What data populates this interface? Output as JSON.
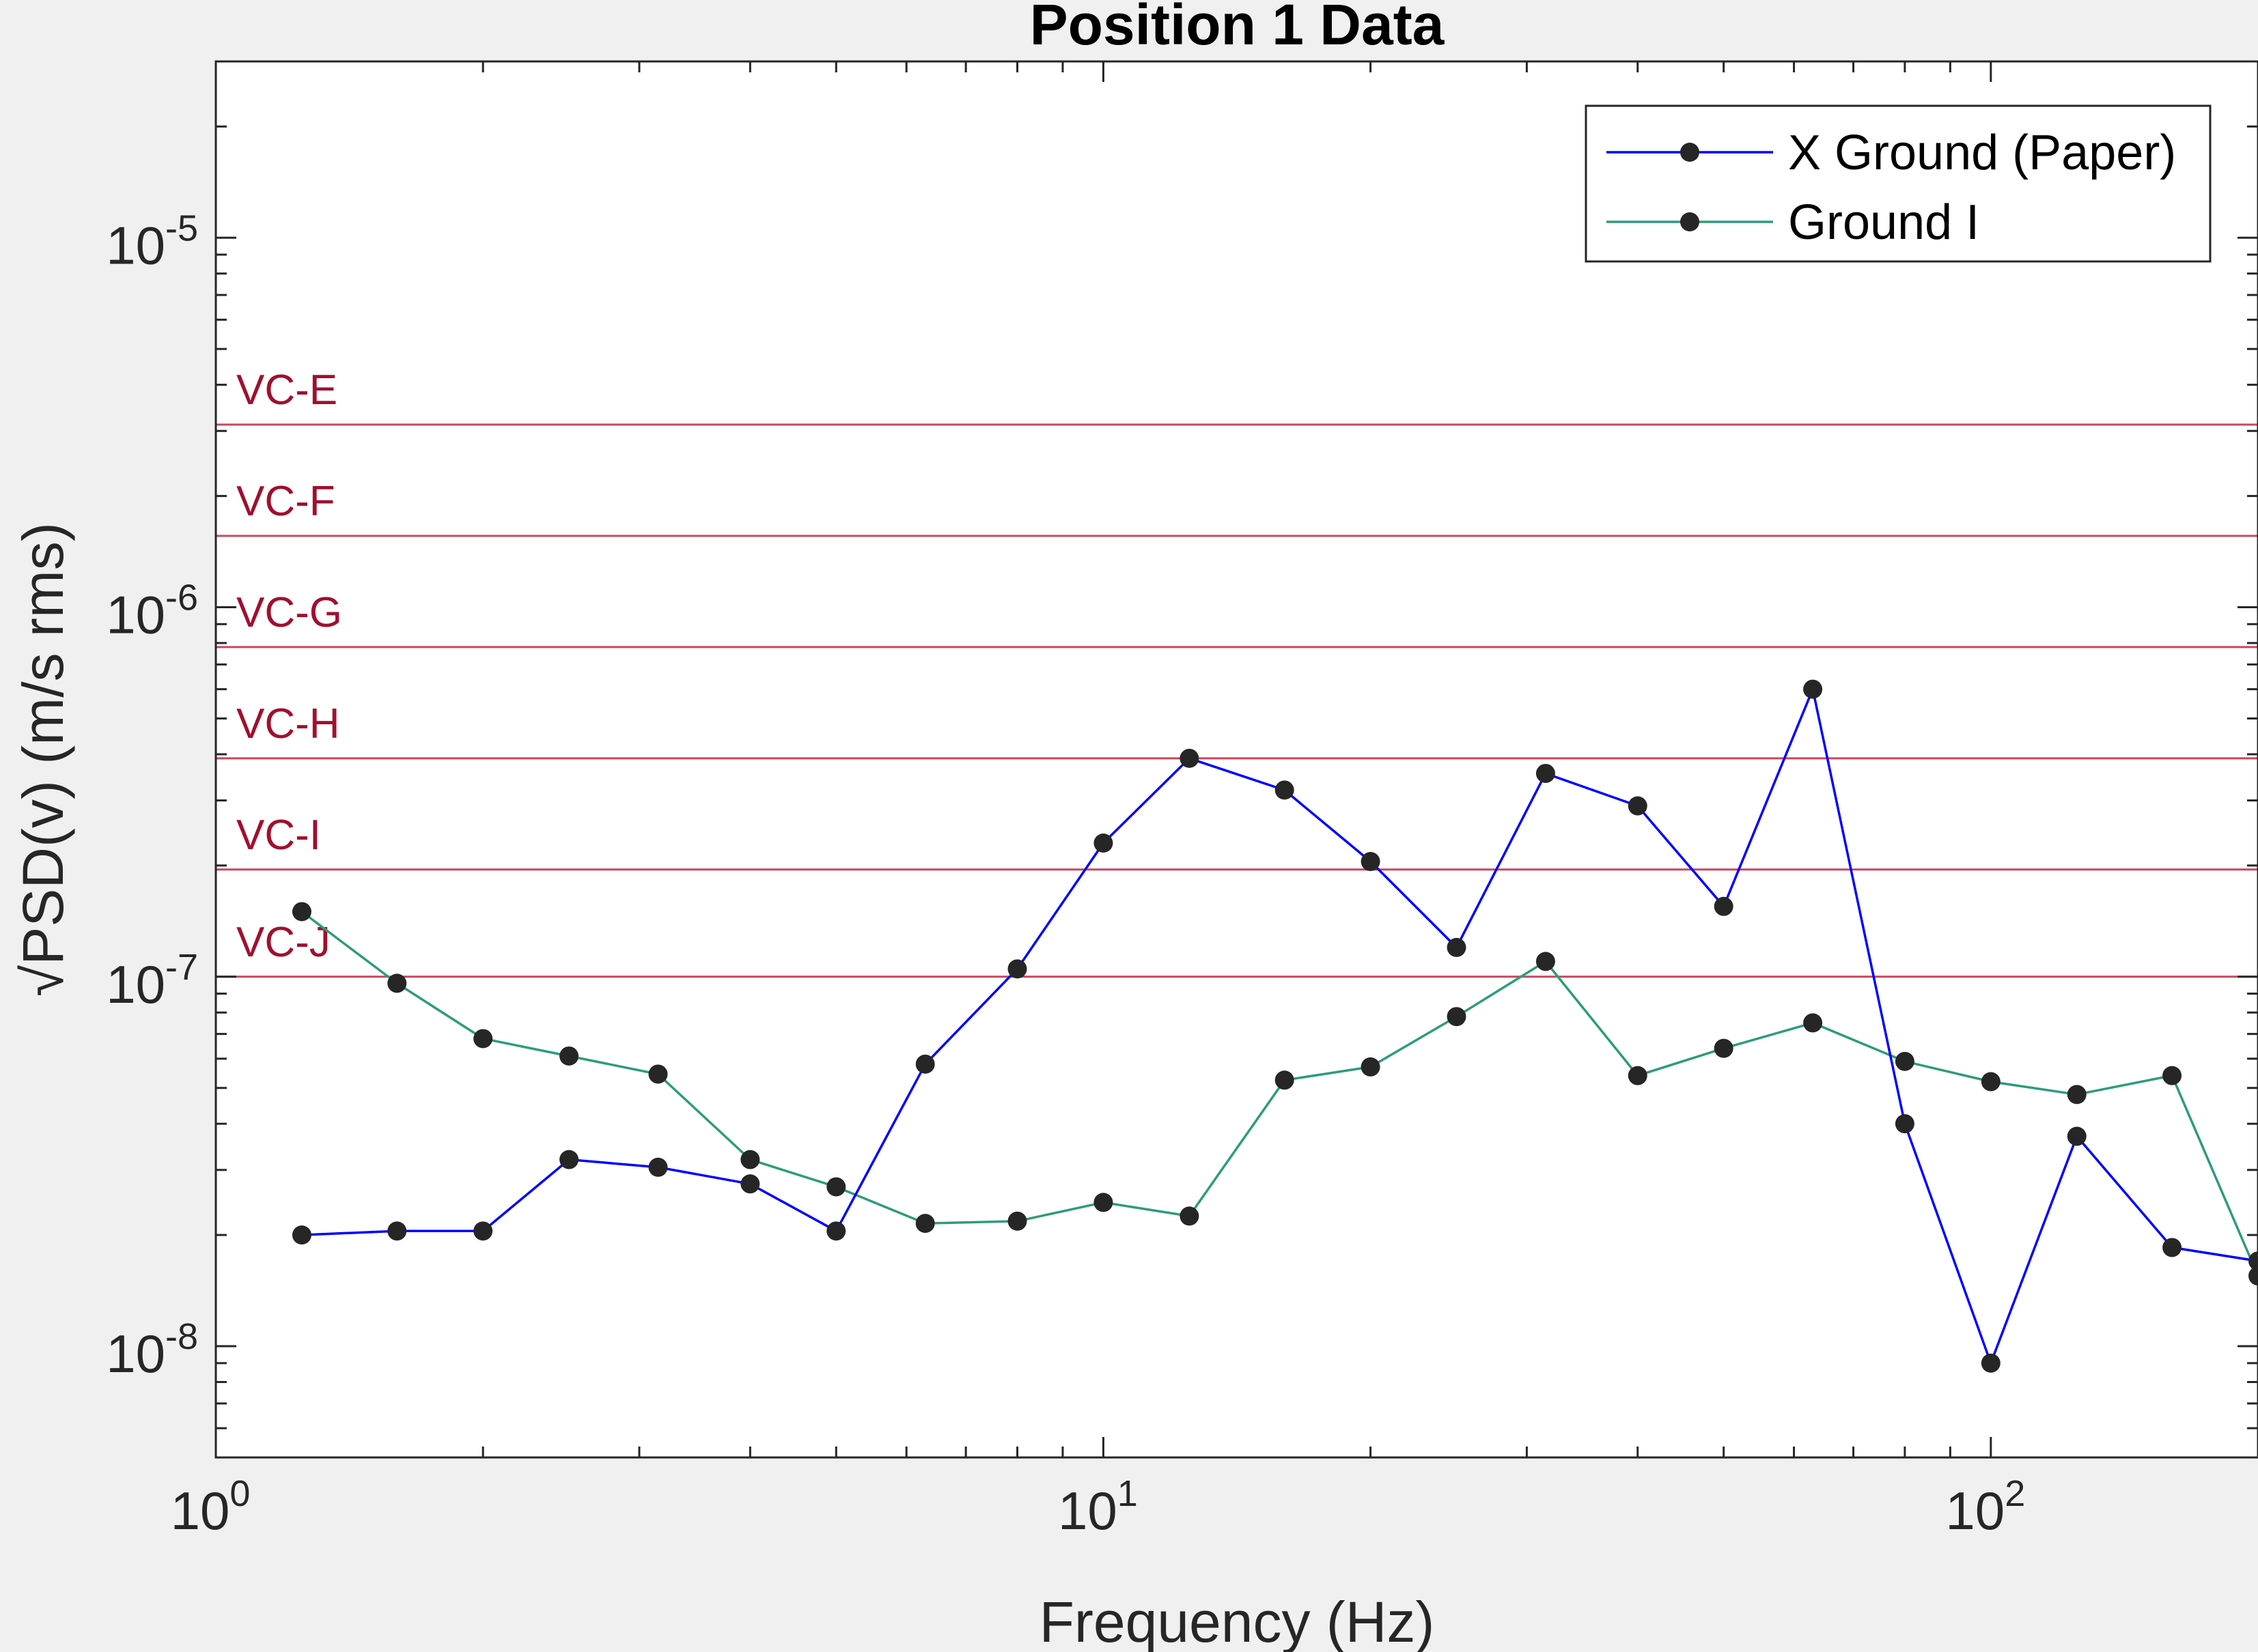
{
  "chart_data": {
    "type": "line",
    "title": "Position 1 Data",
    "xlabel": "Frequency (Hz)",
    "ylabel": "√PSD(v) (m/s rms)",
    "xscale": "log",
    "yscale": "log",
    "xlim": [
      1,
      200
    ],
    "ylim": [
      5e-09,
      3e-05
    ],
    "x_ticks": [
      {
        "value": 1,
        "base": "10",
        "exp": "0"
      },
      {
        "value": 10,
        "base": "10",
        "exp": "1"
      },
      {
        "value": 100,
        "base": "10",
        "exp": "2"
      }
    ],
    "y_ticks": [
      {
        "value": 1e-08,
        "base": "10",
        "exp": "-8"
      },
      {
        "value": 1e-07,
        "base": "10",
        "exp": "-7"
      },
      {
        "value": 1e-06,
        "base": "10",
        "exp": "-6"
      },
      {
        "value": 1e-05,
        "base": "10",
        "exp": "-5"
      }
    ],
    "grid": false,
    "legend_location": "top-right",
    "x": [
      1.25,
      1.6,
      2,
      2.5,
      3.15,
      4,
      5,
      6.3,
      8,
      10,
      12.5,
      16,
      20,
      25,
      31.5,
      40,
      50,
      63,
      80,
      100,
      125,
      160,
      200
    ],
    "series": [
      {
        "name": "X Ground (Paper)",
        "color": "#0000ff",
        "values": [
          2e-08,
          2.05e-08,
          2.05e-08,
          3.2e-08,
          3.05e-08,
          2.75e-08,
          2.05e-08,
          5.8e-08,
          1.05e-07,
          2.3e-07,
          3.9e-07,
          3.2e-07,
          2.05e-07,
          1.2e-07,
          3.55e-07,
          2.9e-07,
          1.55e-07,
          6e-07,
          4e-08,
          9e-09,
          3.7e-08,
          1.85e-08,
          1.7e-08
        ]
      },
      {
        "name": "Ground I",
        "color": "#2e9b7c",
        "values": [
          1.5e-07,
          9.6e-08,
          6.8e-08,
          6.1e-08,
          5.45e-08,
          3.2e-08,
          2.7e-08,
          2.15e-08,
          2.18e-08,
          2.45e-08,
          2.25e-08,
          5.25e-08,
          5.7e-08,
          7.8e-08,
          1.1e-07,
          5.4e-08,
          6.4e-08,
          7.5e-08,
          5.9e-08,
          5.2e-08,
          4.8e-08,
          5.4e-08,
          1.55e-08
        ]
      }
    ],
    "marker_color": "#262626",
    "reference_lines": [
      {
        "label": "VC-E",
        "value": 3.12e-06
      },
      {
        "label": "VC-F",
        "value": 1.56e-06
      },
      {
        "label": "VC-G",
        "value": 7.8e-07
      },
      {
        "label": "VC-H",
        "value": 3.9e-07
      },
      {
        "label": "VC-I",
        "value": 1.95e-07
      },
      {
        "label": "VC-J",
        "value": 1e-07
      }
    ],
    "reference_line_color": "#c8475e",
    "reference_label_color": "#a0102e"
  }
}
